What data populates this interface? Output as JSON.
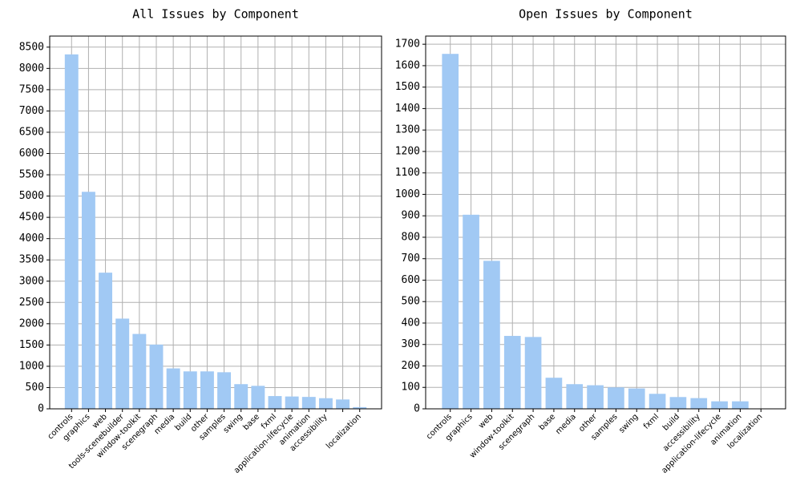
{
  "chart_data": [
    {
      "type": "bar",
      "title": "All Issues by Component",
      "categories": [
        "controls",
        "graphics",
        "web",
        "tools-scenebuilder",
        "window-toolkit",
        "scenegraph",
        "media",
        "build",
        "other",
        "samples",
        "swing",
        "base",
        "fxml",
        "application-lifecycle",
        "animation",
        "accessibility",
        null,
        "localization"
      ],
      "values": [
        8330,
        5100,
        3200,
        2120,
        1760,
        1510,
        950,
        880,
        880,
        860,
        580,
        540,
        300,
        290,
        280,
        250,
        220,
        40
      ],
      "color": "#a1c9f4",
      "ylim": [
        0,
        8760
      ],
      "yticks": [
        0,
        500,
        1000,
        1500,
        2000,
        2500,
        3000,
        3500,
        4000,
        4500,
        5000,
        5500,
        6000,
        6500,
        7000,
        7500,
        8000,
        8500
      ],
      "grid": true
    },
    {
      "type": "bar",
      "title": "Open Issues by Component",
      "categories": [
        "controls",
        "graphics",
        "web",
        "window-toolkit",
        "scenegraph",
        "base",
        "media",
        "other",
        "samples",
        "swing",
        "fxml",
        "build",
        "accessibility",
        "application-lifecycle",
        "animation",
        "localization"
      ],
      "values": [
        1655,
        905,
        690,
        340,
        335,
        145,
        115,
        110,
        100,
        95,
        70,
        55,
        50,
        35,
        35,
        0
      ],
      "color": "#a1c9f4",
      "ylim": [
        0,
        1738
      ],
      "yticks": [
        0,
        100,
        200,
        300,
        400,
        500,
        600,
        700,
        800,
        900,
        1000,
        1100,
        1200,
        1300,
        1400,
        1500,
        1600,
        1700
      ],
      "grid": true
    }
  ]
}
